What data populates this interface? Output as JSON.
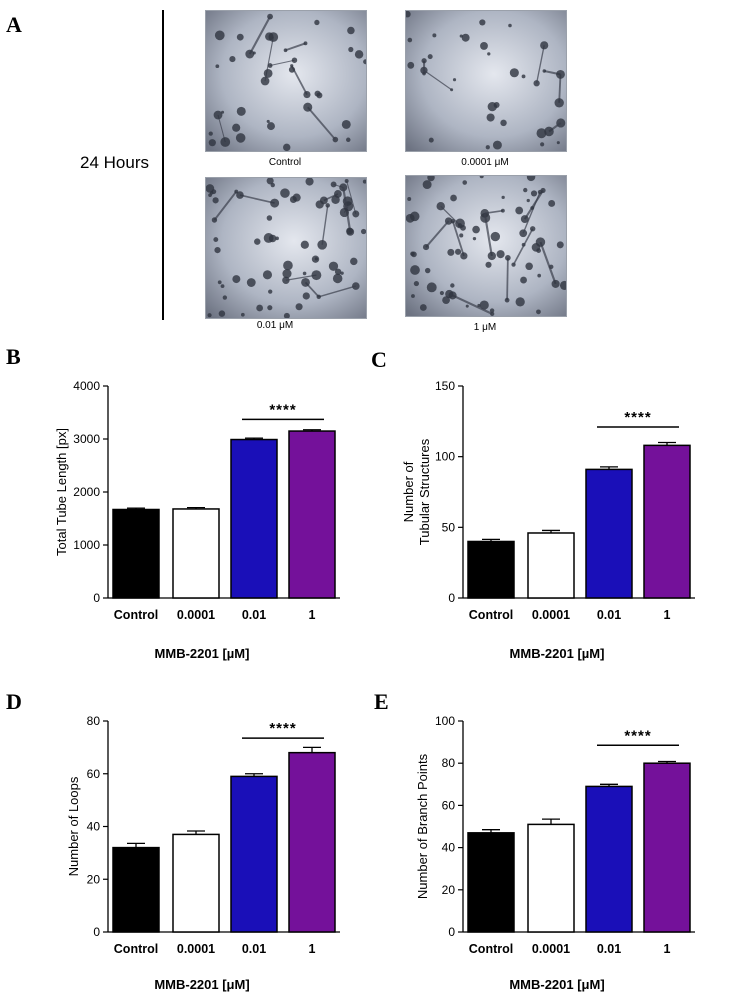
{
  "panel_a": {
    "letter": "A",
    "time_label": "24 Hours",
    "images": [
      {
        "label": "Control"
      },
      {
        "label": "0.0001 μM"
      },
      {
        "label": "0.01 μM"
      },
      {
        "label": "1 μM"
      }
    ]
  },
  "colors": {
    "Control": "#000000",
    "0.0001": "#ffffff",
    "0.01": "#1a0fb8",
    "1": "#74119a"
  },
  "chart_data": [
    {
      "letter": "B",
      "type": "bar",
      "categories": [
        "Control",
        "0.0001",
        "0.01",
        "1"
      ],
      "values": [
        1670,
        1680,
        2990,
        3150
      ],
      "errors": [
        25,
        25,
        25,
        25
      ],
      "ylabel": "Total Tube Length [px]",
      "xlabel": "MMB-2201 [µM]",
      "ylim": [
        0,
        4000
      ],
      "yticks": [
        0,
        1000,
        2000,
        3000,
        4000
      ],
      "significance": {
        "label": "****",
        "from": 2,
        "to": 3,
        "y": 3370
      }
    },
    {
      "letter": "C",
      "type": "bar",
      "categories": [
        "Control",
        "0.0001",
        "0.01",
        "1"
      ],
      "values": [
        40,
        46,
        91,
        108
      ],
      "errors": [
        1.5,
        1.8,
        1.8,
        2.0
      ],
      "ylabel": "Number of|Tubular Structures",
      "xlabel": "MMB-2201 [µM]",
      "ylim": [
        0,
        150
      ],
      "yticks": [
        0,
        50,
        100,
        150
      ],
      "significance": {
        "label": "****",
        "from": 2,
        "to": 3,
        "y": 121
      }
    },
    {
      "letter": "D",
      "type": "bar",
      "categories": [
        "Control",
        "0.0001",
        "0.01",
        "1"
      ],
      "values": [
        32,
        37,
        59,
        68
      ],
      "errors": [
        1.6,
        1.3,
        1.0,
        2.0
      ],
      "ylabel": "Number of Loops",
      "xlabel": "MMB-2201 [μM]",
      "ylim": [
        0,
        80
      ],
      "yticks": [
        0,
        20,
        40,
        60,
        80
      ],
      "significance": {
        "label": "****",
        "from": 2,
        "to": 3,
        "y": 73.5
      }
    },
    {
      "letter": "E",
      "type": "bar",
      "categories": [
        "Control",
        "0.0001",
        "0.01",
        "1"
      ],
      "values": [
        47,
        51,
        69,
        80
      ],
      "errors": [
        1.5,
        2.5,
        1.0,
        0.8
      ],
      "ylabel": "Number of Branch Points",
      "xlabel": "MMB-2201 [μM]",
      "ylim": [
        0,
        100
      ],
      "yticks": [
        0,
        20,
        40,
        60,
        80,
        100
      ],
      "significance": {
        "label": "****",
        "from": 2,
        "to": 3,
        "y": 88.5
      }
    }
  ]
}
